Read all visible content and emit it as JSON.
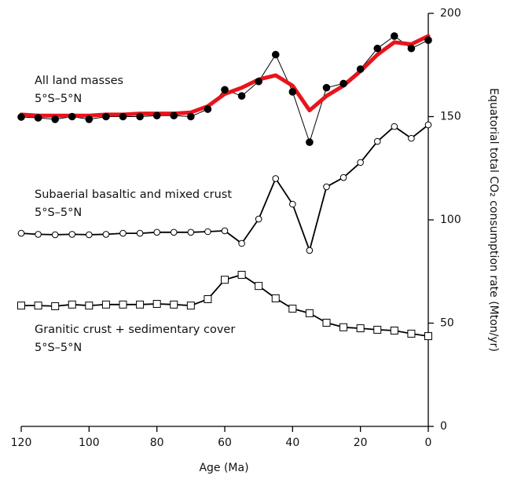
{
  "chart_data": {
    "type": "line",
    "x_label": "Age (Ma)",
    "y_label": "Equatorial total CO₂ consumption rate (Mton/yr)",
    "x": [
      120,
      115,
      110,
      105,
      100,
      95,
      90,
      85,
      80,
      75,
      70,
      65,
      60,
      55,
      50,
      45,
      40,
      35,
      30,
      25,
      20,
      15,
      10,
      5,
      0
    ],
    "xlim": [
      120,
      0
    ],
    "xticks": [
      120,
      100,
      80,
      60,
      40,
      20,
      0
    ],
    "ylim": [
      0,
      200
    ],
    "yticks": [
      0,
      50,
      100,
      150,
      200
    ],
    "y_axis_side": "right",
    "series": [
      {
        "name": "All land masses",
        "region": "5°S–5°N",
        "color": "#000000",
        "marker": "filled-circle",
        "values": [
          149.8,
          149.4,
          148.7,
          150,
          148.7,
          150,
          150,
          150,
          150.5,
          150.5,
          150,
          153.6,
          163,
          160,
          167,
          180,
          162,
          137.6,
          164,
          166,
          173,
          183,
          189,
          183,
          187
        ]
      },
      {
        "style": "smooth",
        "color": "#e8141c",
        "values": [
          151,
          150.5,
          150.5,
          150.5,
          150.5,
          151,
          151,
          151.5,
          151.5,
          151.5,
          152,
          155,
          161,
          164,
          168,
          170,
          165,
          153,
          160,
          165,
          172,
          180,
          186,
          185,
          189
        ]
      },
      {
        "name": "Subaerial basaltic and mixed crust",
        "region": "5°S–5°N",
        "color": "#000000",
        "marker": "open-circle",
        "values": [
          93.5,
          93,
          92.8,
          93,
          92.8,
          93,
          93.5,
          93.5,
          94,
          94,
          94,
          94.3,
          94.7,
          88.6,
          100.4,
          120,
          107.6,
          85.2,
          116,
          120.5,
          127.8,
          138,
          145.2,
          139.5,
          146
        ]
      },
      {
        "name": "Granitic crust + sedimentary cover",
        "region": "5°S–5°N",
        "color": "#000000",
        "marker": "open-square",
        "values": [
          58.5,
          58.5,
          58.2,
          59,
          58.5,
          59,
          59,
          59,
          59.3,
          59,
          58.5,
          61.6,
          71,
          73.4,
          68,
          62,
          57,
          54.8,
          50.2,
          48,
          47.5,
          46.8,
          46.4,
          44.9,
          43.7
        ]
      }
    ]
  }
}
